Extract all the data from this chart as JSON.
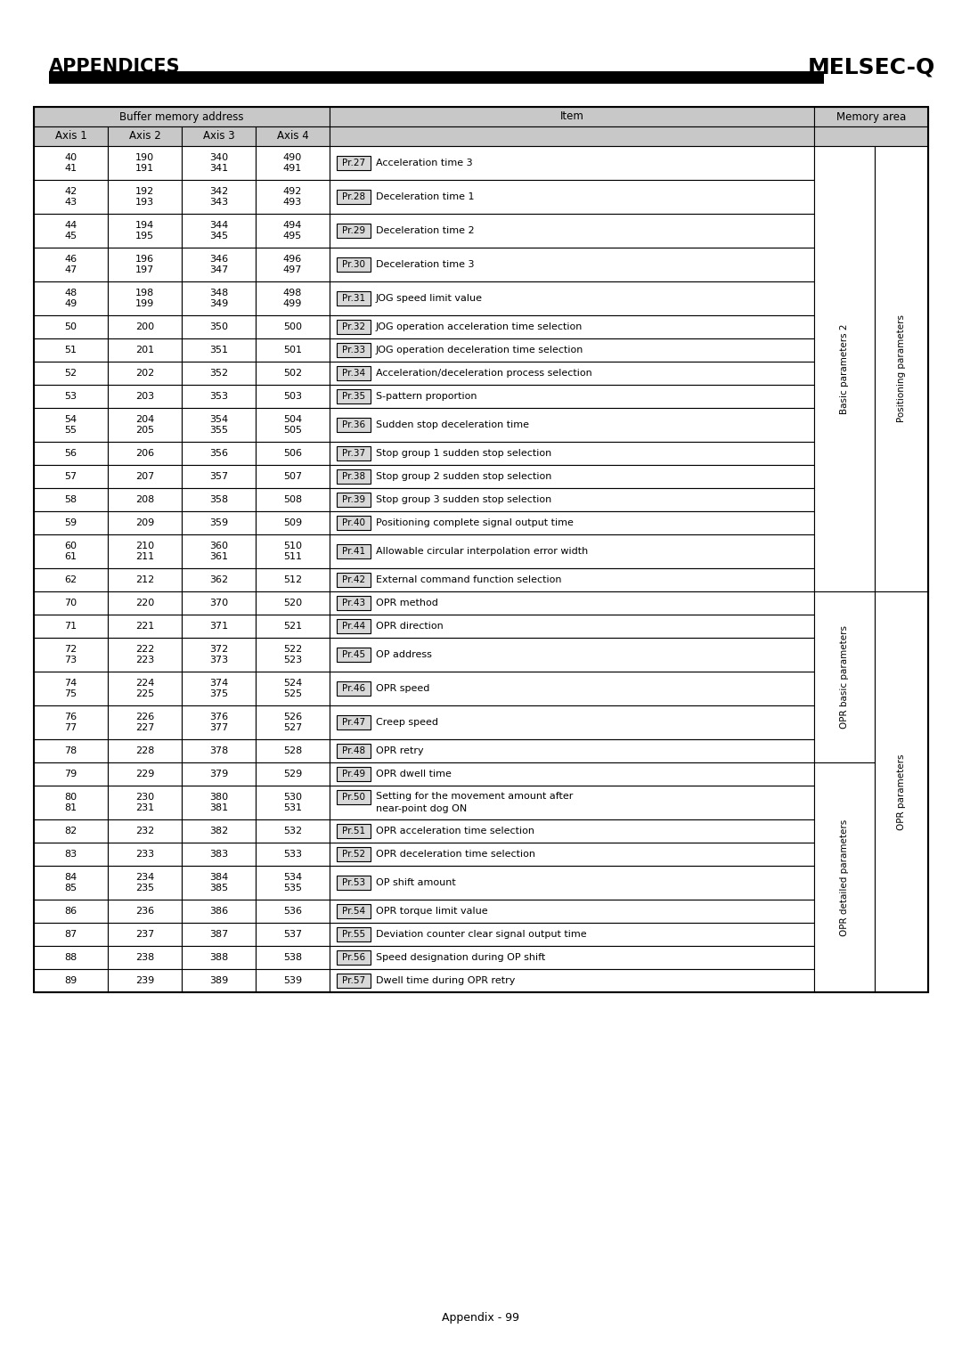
{
  "title_left": "APPENDICES",
  "title_right": "MELSEC-Q",
  "footer": "Appendix - 99",
  "rows": [
    {
      "axis1": "40\n41",
      "axis2": "190\n191",
      "axis3": "340\n341",
      "axis4": "490\n491",
      "pr": "Pr.27",
      "item": "Acceleration time 3",
      "double": true
    },
    {
      "axis1": "42\n43",
      "axis2": "192\n193",
      "axis3": "342\n343",
      "axis4": "492\n493",
      "pr": "Pr.28",
      "item": "Deceleration time 1",
      "double": true
    },
    {
      "axis1": "44\n45",
      "axis2": "194\n195",
      "axis3": "344\n345",
      "axis4": "494\n495",
      "pr": "Pr.29",
      "item": "Deceleration time 2",
      "double": true
    },
    {
      "axis1": "46\n47",
      "axis2": "196\n197",
      "axis3": "346\n347",
      "axis4": "496\n497",
      "pr": "Pr.30",
      "item": "Deceleration time 3",
      "double": true
    },
    {
      "axis1": "48\n49",
      "axis2": "198\n199",
      "axis3": "348\n349",
      "axis4": "498\n499",
      "pr": "Pr.31",
      "item": "JOG speed limit value",
      "double": true
    },
    {
      "axis1": "50",
      "axis2": "200",
      "axis3": "350",
      "axis4": "500",
      "pr": "Pr.32",
      "item": "JOG operation acceleration time selection",
      "double": false
    },
    {
      "axis1": "51",
      "axis2": "201",
      "axis3": "351",
      "axis4": "501",
      "pr": "Pr.33",
      "item": "JOG operation deceleration time selection",
      "double": false
    },
    {
      "axis1": "52",
      "axis2": "202",
      "axis3": "352",
      "axis4": "502",
      "pr": "Pr.34",
      "item": "Acceleration/deceleration process selection",
      "double": false
    },
    {
      "axis1": "53",
      "axis2": "203",
      "axis3": "353",
      "axis4": "503",
      "pr": "Pr.35",
      "item": "S-pattern proportion",
      "double": false
    },
    {
      "axis1": "54\n55",
      "axis2": "204\n205",
      "axis3": "354\n355",
      "axis4": "504\n505",
      "pr": "Pr.36",
      "item": "Sudden stop deceleration time",
      "double": true
    },
    {
      "axis1": "56",
      "axis2": "206",
      "axis3": "356",
      "axis4": "506",
      "pr": "Pr.37",
      "item": "Stop group 1 sudden stop selection",
      "double": false
    },
    {
      "axis1": "57",
      "axis2": "207",
      "axis3": "357",
      "axis4": "507",
      "pr": "Pr.38",
      "item": "Stop group 2 sudden stop selection",
      "double": false
    },
    {
      "axis1": "58",
      "axis2": "208",
      "axis3": "358",
      "axis4": "508",
      "pr": "Pr.39",
      "item": "Stop group 3 sudden stop selection",
      "double": false
    },
    {
      "axis1": "59",
      "axis2": "209",
      "axis3": "359",
      "axis4": "509",
      "pr": "Pr.40",
      "item": "Positioning complete signal output time",
      "double": false
    },
    {
      "axis1": "60\n61",
      "axis2": "210\n211",
      "axis3": "360\n361",
      "axis4": "510\n511",
      "pr": "Pr.41",
      "item": "Allowable circular interpolation error width",
      "double": true
    },
    {
      "axis1": "62",
      "axis2": "212",
      "axis3": "362",
      "axis4": "512",
      "pr": "Pr.42",
      "item": "External command function selection",
      "double": false
    },
    {
      "axis1": "70",
      "axis2": "220",
      "axis3": "370",
      "axis4": "520",
      "pr": "Pr.43",
      "item": "OPR method",
      "double": false
    },
    {
      "axis1": "71",
      "axis2": "221",
      "axis3": "371",
      "axis4": "521",
      "pr": "Pr.44",
      "item": "OPR direction",
      "double": false
    },
    {
      "axis1": "72\n73",
      "axis2": "222\n223",
      "axis3": "372\n373",
      "axis4": "522\n523",
      "pr": "Pr.45",
      "item": "OP address",
      "double": true
    },
    {
      "axis1": "74\n75",
      "axis2": "224\n225",
      "axis3": "374\n375",
      "axis4": "524\n525",
      "pr": "Pr.46",
      "item": "OPR speed",
      "double": true
    },
    {
      "axis1": "76\n77",
      "axis2": "226\n227",
      "axis3": "376\n377",
      "axis4": "526\n527",
      "pr": "Pr.47",
      "item": "Creep speed",
      "double": true
    },
    {
      "axis1": "78",
      "axis2": "228",
      "axis3": "378",
      "axis4": "528",
      "pr": "Pr.48",
      "item": "OPR retry",
      "double": false
    },
    {
      "axis1": "79",
      "axis2": "229",
      "axis3": "379",
      "axis4": "529",
      "pr": "Pr.49",
      "item": "OPR dwell time",
      "double": false
    },
    {
      "axis1": "80\n81",
      "axis2": "230\n231",
      "axis3": "380\n381",
      "axis4": "530\n531",
      "pr": "Pr.50",
      "item": "Setting for the movement amount after\nnear-point dog ON",
      "double": true
    },
    {
      "axis1": "82",
      "axis2": "232",
      "axis3": "382",
      "axis4": "532",
      "pr": "Pr.51",
      "item": "OPR acceleration time selection",
      "double": false
    },
    {
      "axis1": "83",
      "axis2": "233",
      "axis3": "383",
      "axis4": "533",
      "pr": "Pr.52",
      "item": "OPR deceleration time selection",
      "double": false
    },
    {
      "axis1": "84\n85",
      "axis2": "234\n235",
      "axis3": "384\n385",
      "axis4": "534\n535",
      "pr": "Pr.53",
      "item": "OP shift amount",
      "double": true
    },
    {
      "axis1": "86",
      "axis2": "236",
      "axis3": "386",
      "axis4": "536",
      "pr": "Pr.54",
      "item": "OPR torque limit value",
      "double": false
    },
    {
      "axis1": "87",
      "axis2": "237",
      "axis3": "387",
      "axis4": "537",
      "pr": "Pr.55",
      "item": "Deviation counter clear signal output time",
      "double": false
    },
    {
      "axis1": "88",
      "axis2": "238",
      "axis3": "388",
      "axis4": "538",
      "pr": "Pr.56",
      "item": "Speed designation during OP shift",
      "double": false
    },
    {
      "axis1": "89",
      "axis2": "239",
      "axis3": "389",
      "axis4": "539",
      "pr": "Pr.57",
      "item": "Dwell time during OPR retry",
      "double": false
    }
  ],
  "header_bg": "#c8c8c8",
  "white": "#ffffff",
  "black": "#000000",
  "pr_box_bg": "#d8d8d8"
}
